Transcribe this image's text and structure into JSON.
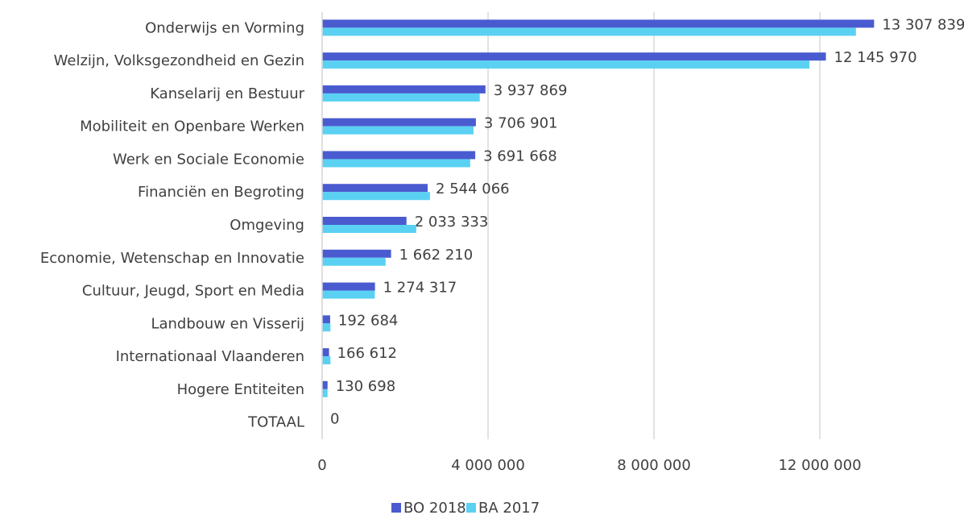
{
  "chart_data": {
    "type": "hbar",
    "categories": [
      "Onderwijs en Vorming",
      "Welzijn, Volksgezondheid en Gezin",
      "Kanselarij en Bestuur",
      "Mobiliteit en Openbare Werken",
      "Werk en Sociale Economie",
      "Financiën en Begroting",
      "Omgeving",
      "Economie, Wetenschap en Innovatie",
      "Cultuur, Jeugd, Sport en Media",
      "Landbouw en Visserij",
      "Internationaal Vlaanderen",
      "Hogere Entiteiten",
      "TOTAAL"
    ],
    "series": [
      {
        "name": "BO 2018",
        "color": "#4a5bd0",
        "values": [
          13307839,
          12145970,
          3937869,
          3706901,
          3691668,
          2544066,
          2033333,
          1662210,
          1274317,
          192684,
          166612,
          130698,
          0
        ],
        "value_labels": [
          "13 307 839",
          "12 145 970",
          "3 937 869",
          "3 706 901",
          "3 691 668",
          "2 544 066",
          "2 033 333",
          "1 662 210",
          "1 274 317",
          "192 684",
          "166 612",
          "130 698",
          "0"
        ]
      },
      {
        "name": "BA 2017",
        "color": "#5ad1f2",
        "values": [
          12870000,
          11750000,
          3800000,
          3650000,
          3570000,
          2600000,
          2270000,
          1530000,
          1270000,
          200000,
          200000,
          130000,
          0
        ]
      }
    ],
    "xlim": [
      0,
      14000000
    ],
    "xticks": [
      0,
      {
        "value": 4000000,
        "label": "4 000 000"
      },
      {
        "value": 8000000,
        "label": "8 000 000"
      },
      {
        "value": 12000000,
        "label": "12 000 000"
      }
    ],
    "grid": true,
    "legend": "bottom"
  }
}
